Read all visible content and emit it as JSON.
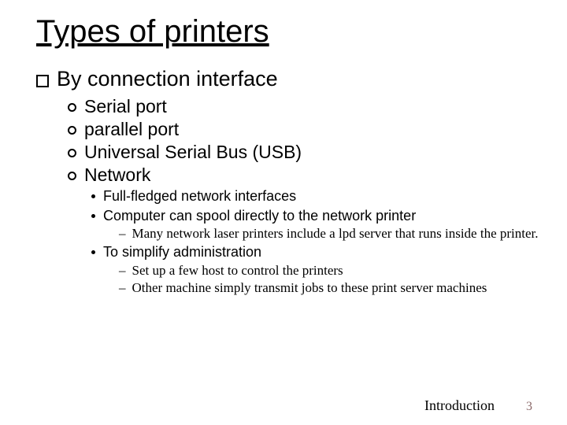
{
  "title": "Types of printers",
  "lvl1": "By connection interface",
  "lvl2": {
    "a": "Serial port",
    "b": "parallel port",
    "c": "Universal Serial Bus (USB)",
    "d": "Network"
  },
  "lvl3": {
    "a": "Full-fledged network interfaces",
    "b": "Computer can spool directly to the network printer",
    "c": "To simplify administration"
  },
  "lvl4": {
    "a": "Many network laser printers include a lpd server that runs inside the printer.",
    "b": "Set up a few host to control the printers",
    "c": "Other machine simply transmit jobs to these print server machines"
  },
  "footer": {
    "section": "Introduction",
    "page": "3"
  },
  "style": {
    "background_color": "#ffffff",
    "text_color": "#000000",
    "page_number_color": "#8b6969",
    "title_fontsize": 40,
    "lvl1_fontsize": 27,
    "lvl2_fontsize": 23,
    "lvl3_fontsize": 18,
    "lvl4_fontsize": 17,
    "body_font": "Comic Sans MS",
    "lvl4_font": "Times New Roman",
    "bullets": {
      "lvl1": "hollow-square",
      "lvl2": "hollow-circle",
      "lvl3": "filled-dot",
      "lvl4": "en-dash"
    }
  }
}
